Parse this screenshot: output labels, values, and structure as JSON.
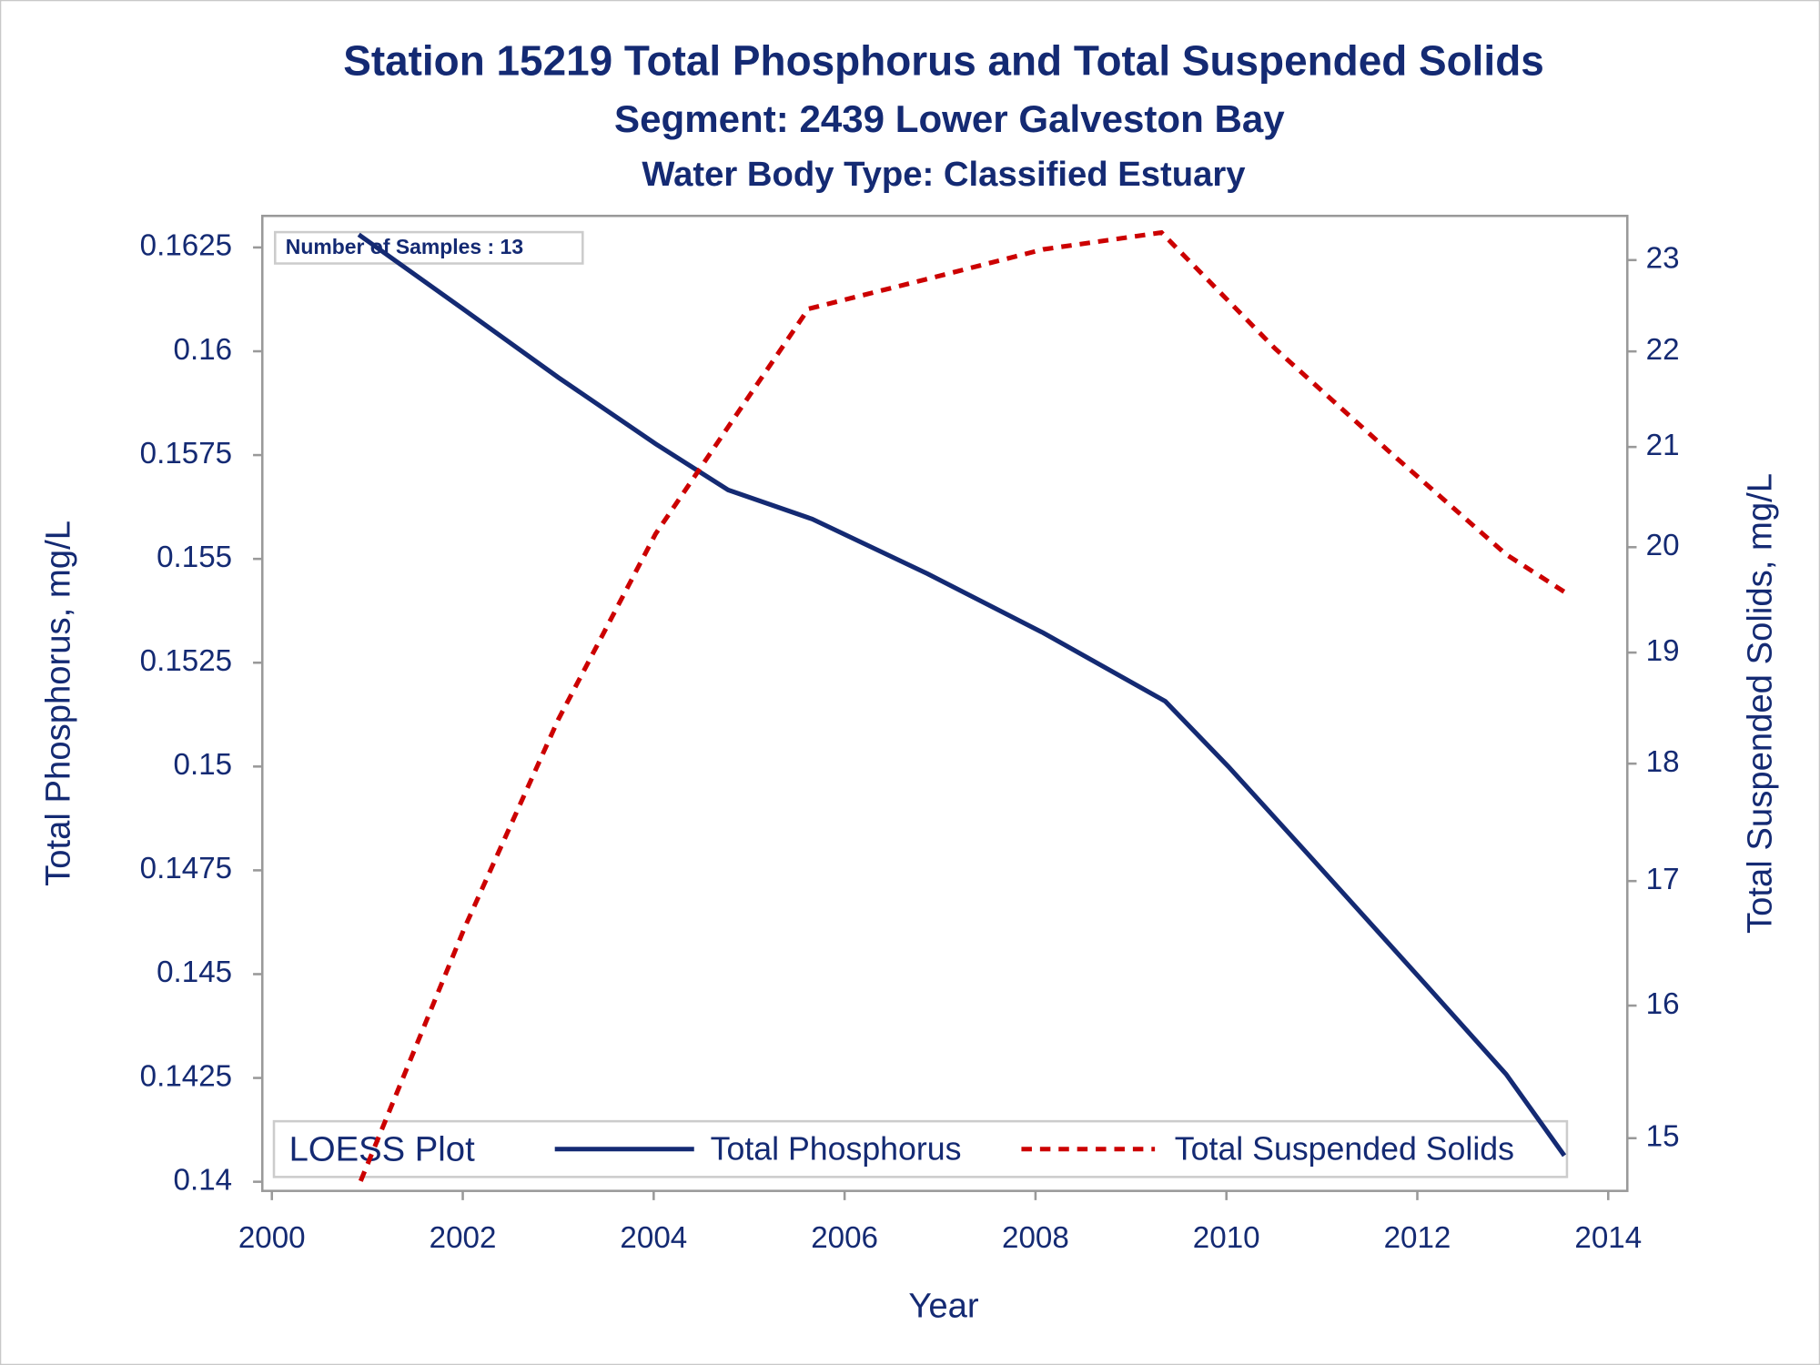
{
  "chart_data": {
    "type": "line",
    "title": "Station 15219  Total Phosphorus and Total Suspended Solids",
    "subtitles": [
      "Segment: 2439  Lower Galveston Bay",
      "Water Body Type: Classified Estuary"
    ],
    "annotation": "Number of Samples : 13",
    "legend_title": "LOESS Plot",
    "x_label": "Year",
    "y_label": "Total Phosphorus, mg/L",
    "y2_label": "Total Suspended Solids, mg/L",
    "xlim": [
      1999.9,
      2014.2
    ],
    "xticks": [
      2000,
      2002,
      2004,
      2006,
      2008,
      2010,
      2012,
      2014
    ],
    "ylim": [
      0.13978,
      0.16326
    ],
    "yticks": [
      0.14,
      0.1425,
      0.145,
      0.1475,
      0.15,
      0.1525,
      0.155,
      0.1575,
      0.16,
      0.1625
    ],
    "y2lim": [
      14.62,
      23.5
    ],
    "y2ticks": [
      15,
      16,
      17,
      18,
      19,
      20,
      21,
      22,
      23
    ],
    "y2_log": true,
    "legend_position": "bottom",
    "series": [
      {
        "name": "Total Phosphorus",
        "color": "#142a73",
        "style": "solid",
        "x": [
          2000.91,
          2002.02,
          2003.0,
          2004.02,
          2004.78,
          2005.66,
          2006.87,
          2008.08,
          2009.36,
          2010.02,
          2010.87,
          2012.08,
          2012.93,
          2013.54
        ],
        "values": [
          0.16281,
          0.16099,
          0.15937,
          0.15777,
          0.15666,
          0.15596,
          0.15464,
          0.15322,
          0.15157,
          0.15,
          0.14785,
          0.14477,
          0.14259,
          0.14063
        ]
      },
      {
        "name": "Total Suspended Solids",
        "color": "#cc0000",
        "style": "dashed",
        "axis": "y2",
        "x": [
          2000.93,
          2002.02,
          2003.0,
          2004.02,
          2005.62,
          2006.87,
          2008.08,
          2009.32,
          2010.51,
          2011.72,
          2012.93,
          2013.54
        ],
        "values": [
          14.69,
          16.62,
          18.39,
          20.13,
          22.46,
          22.79,
          23.12,
          23.31,
          22.03,
          20.94,
          19.93,
          19.57
        ]
      }
    ]
  }
}
